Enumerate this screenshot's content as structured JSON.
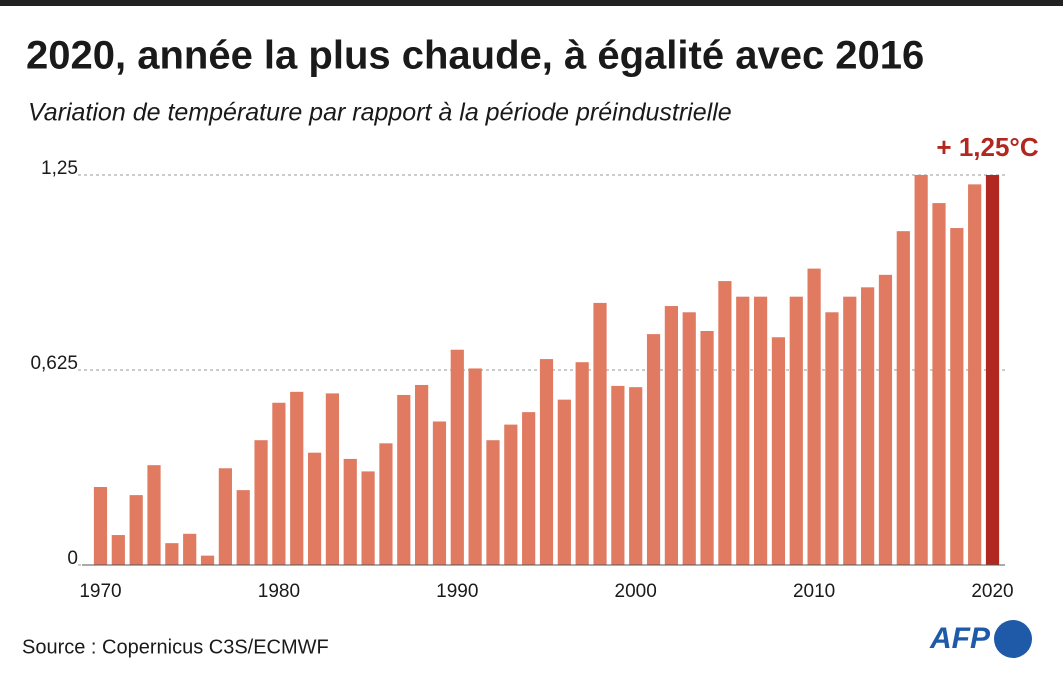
{
  "chart_data": {
    "type": "bar",
    "title": "2020, année la plus chaude, à égalité avec 2016",
    "subtitle": "Variation de température par rapport à la période préindustrielle",
    "annotation": "+ 1,25°C",
    "source": "Source : Copernicus C3S/ECMWF",
    "logo": "AFP",
    "x": [
      1970,
      1971,
      1972,
      1973,
      1974,
      1975,
      1976,
      1977,
      1978,
      1979,
      1980,
      1981,
      1982,
      1983,
      1984,
      1985,
      1986,
      1987,
      1988,
      1989,
      1990,
      1991,
      1992,
      1993,
      1994,
      1995,
      1996,
      1997,
      1998,
      1999,
      2000,
      2001,
      2002,
      2003,
      2004,
      2005,
      2006,
      2007,
      2008,
      2009,
      2010,
      2011,
      2012,
      2013,
      2014,
      2015,
      2016,
      2017,
      2018,
      2019,
      2020
    ],
    "values": [
      0.25,
      0.096,
      0.224,
      0.32,
      0.07,
      0.1,
      0.03,
      0.31,
      0.24,
      0.4,
      0.52,
      0.555,
      0.36,
      0.55,
      0.34,
      0.3,
      0.39,
      0.545,
      0.577,
      0.46,
      0.69,
      0.63,
      0.4,
      0.45,
      0.49,
      0.66,
      0.53,
      0.65,
      0.84,
      0.574,
      0.57,
      0.74,
      0.83,
      0.81,
      0.75,
      0.91,
      0.86,
      0.86,
      0.73,
      0.86,
      0.95,
      0.81,
      0.86,
      0.89,
      0.93,
      1.07,
      1.25,
      1.16,
      1.08,
      1.22,
      1.25
    ],
    "color": "#e07b62",
    "highlight": {
      "x": 2020,
      "color": "#b0281f"
    },
    "xlim": [
      1969.3,
      2020.7
    ],
    "xticks": [
      1970,
      1980,
      1990,
      2000,
      2010,
      2020
    ],
    "ylim": [
      0,
      1.25
    ],
    "yticks": [
      0,
      {
        "value": 0.625,
        "label": "0,625"
      },
      {
        "value": 1.25,
        "label": "1,25"
      }
    ],
    "grid": true
  }
}
